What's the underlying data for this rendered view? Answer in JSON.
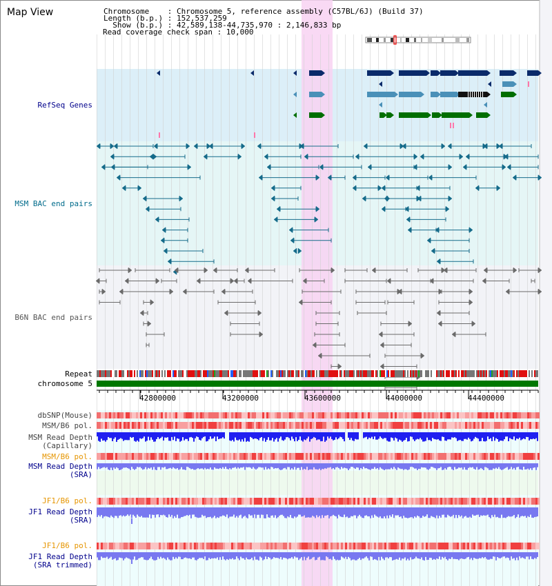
{
  "app": {
    "title": "Map View"
  },
  "header": {
    "lines": [
      "Chromosome    : Chromosome 5, reference assembly (C57BL/6J) (Build 37)",
      "Length (b.p.) : 152,537,259",
      "  Show (b.p.) : 42,589,138-44,735,970 : 2,146,833 bp",
      "Read coverage check span : 10,000"
    ]
  },
  "tracks": {
    "refseq": {
      "label": "RefSeq Genes",
      "color": "#00008b"
    },
    "msm_bac": {
      "label": "MSM BAC end pairs",
      "color": "#006b8b"
    },
    "b6n_bac": {
      "label": "B6N BAC end pairs",
      "color": "#555555"
    },
    "repeat": {
      "label": "Repeat"
    },
    "chromosome": {
      "label": "chromosome 5",
      "color": "#007700"
    },
    "dbsnp": {
      "label": "dbSNP(Mouse)"
    },
    "msm_b6_pol": {
      "label": "MSM/B6 pol."
    },
    "msm_depth_cap": {
      "line1": "MSM Read Depth",
      "line2": "(Capillary)"
    },
    "msm_b6_pol2": {
      "label": "MSM/B6 pol.",
      "color": "#e69500"
    },
    "msm_depth_sra": {
      "line1": "MSM Read Depth",
      "line2": "(SRA)"
    },
    "jf1_b6_pol": {
      "label": "JF1/B6 pol.",
      "color": "#e69500"
    },
    "jf1_depth_sra": {
      "line1": "JF1 Read Depth",
      "line2": "(SRA)"
    },
    "jf1_b6_pol2": {
      "label": "JF1/B6 pol.",
      "color": "#e69500"
    },
    "jf1_depth_trim": {
      "line1": "JF1 Read Depth",
      "line2": "(SRA trimmed)"
    }
  },
  "axis": {
    "ticks": [
      "42800000",
      "43200000",
      "43600000",
      "44000000",
      "44400000"
    ]
  },
  "colors": {
    "refseq_bg": "#dceff8",
    "msm_bg": "#e5f6f6",
    "b6n_bg": "#f2f3f7",
    "highlight": "#f8d2f2",
    "dark_blue": "#0a2a6a",
    "mid_blue": "#4a90b8",
    "green": "#006e00",
    "depth_blue": "#2020f0",
    "depth_light": "#7878f0"
  }
}
